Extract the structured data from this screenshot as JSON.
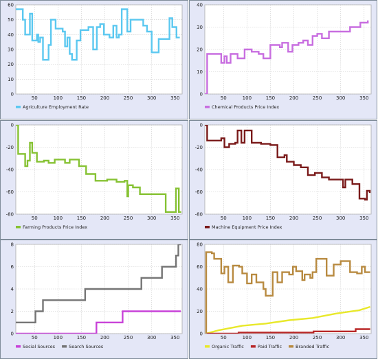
{
  "chart_data": [
    {
      "type": "line",
      "xlim": [
        10,
        365
      ],
      "ylim": [
        0,
        60
      ],
      "x_ticks": [
        50,
        100,
        150,
        200,
        250,
        300,
        350
      ],
      "y_ticks": [
        0,
        10,
        20,
        30,
        40,
        50,
        60
      ],
      "grid": true,
      "legend_position": "bottom-left",
      "series": [
        {
          "name": "Agriculture Employment Rate",
          "color": "#5bc8f0",
          "step": true,
          "points": [
            [
              10,
              57
            ],
            [
              25,
              50
            ],
            [
              30,
              40
            ],
            [
              38,
              40
            ],
            [
              40,
              54
            ],
            [
              45,
              36
            ],
            [
              55,
              40
            ],
            [
              58,
              35
            ],
            [
              62,
              38
            ],
            [
              68,
              23
            ],
            [
              80,
              33
            ],
            [
              85,
              50
            ],
            [
              95,
              44
            ],
            [
              110,
              42
            ],
            [
              115,
              32
            ],
            [
              120,
              38
            ],
            [
              125,
              27
            ],
            [
              130,
              23
            ],
            [
              140,
              36
            ],
            [
              148,
              43
            ],
            [
              165,
              45
            ],
            [
              175,
              30
            ],
            [
              183,
              45
            ],
            [
              190,
              47
            ],
            [
              198,
              40
            ],
            [
              210,
              38
            ],
            [
              218,
              46
            ],
            [
              225,
              38
            ],
            [
              230,
              40
            ],
            [
              236,
              57
            ],
            [
              248,
              42
            ],
            [
              255,
              50
            ],
            [
              275,
              50
            ],
            [
              282,
              46
            ],
            [
              290,
              42
            ],
            [
              300,
              28
            ],
            [
              315,
              37
            ],
            [
              328,
              37
            ],
            [
              338,
              51
            ],
            [
              344,
              45
            ],
            [
              353,
              38
            ],
            [
              360,
              38
            ]
          ]
        }
      ]
    },
    {
      "type": "line",
      "xlim": [
        10,
        365
      ],
      "ylim": [
        0,
        40
      ],
      "x_ticks": [
        50,
        100,
        150,
        200,
        250,
        300,
        350
      ],
      "y_ticks": [
        0,
        10,
        20,
        30,
        40
      ],
      "grid": true,
      "legend_position": "bottom-left",
      "series": [
        {
          "name": "Chemical Products Price Index",
          "color": "#c86ee0",
          "step": true,
          "points": [
            [
              10,
              0
            ],
            [
              15,
              18
            ],
            [
              45,
              14
            ],
            [
              52,
              17
            ],
            [
              57,
              14
            ],
            [
              65,
              18
            ],
            [
              80,
              16
            ],
            [
              95,
              20
            ],
            [
              110,
              19
            ],
            [
              125,
              18
            ],
            [
              135,
              16
            ],
            [
              150,
              22
            ],
            [
              170,
              21
            ],
            [
              175,
              23
            ],
            [
              188,
              19
            ],
            [
              197,
              22
            ],
            [
              210,
              23
            ],
            [
              220,
              24
            ],
            [
              230,
              22
            ],
            [
              240,
              26
            ],
            [
              250,
              27
            ],
            [
              260,
              25
            ],
            [
              275,
              28
            ],
            [
              300,
              28
            ],
            [
              320,
              30
            ],
            [
              342,
              32
            ],
            [
              358,
              33
            ]
          ]
        }
      ]
    },
    {
      "type": "line",
      "xlim": [
        10,
        365
      ],
      "ylim": [
        -80,
        0
      ],
      "x_ticks": [
        50,
        100,
        150,
        200,
        250,
        300,
        350
      ],
      "y_ticks": [
        -80,
        -60,
        -40,
        -20,
        0
      ],
      "grid": true,
      "legend_position": "bottom-left",
      "series": [
        {
          "name": "Farming Products Price Index",
          "color": "#86c233",
          "step": true,
          "points": [
            [
              10,
              0
            ],
            [
              15,
              -26
            ],
            [
              30,
              -37
            ],
            [
              35,
              -32
            ],
            [
              40,
              -16
            ],
            [
              45,
              -25
            ],
            [
              55,
              -33
            ],
            [
              70,
              -32
            ],
            [
              80,
              -34
            ],
            [
              93,
              -31
            ],
            [
              115,
              -34
            ],
            [
              125,
              -31
            ],
            [
              145,
              -37
            ],
            [
              160,
              -44
            ],
            [
              173,
              -44
            ],
            [
              180,
              -50
            ],
            [
              205,
              -49
            ],
            [
              225,
              -51
            ],
            [
              242,
              -50
            ],
            [
              248,
              -64
            ],
            [
              250,
              -54
            ],
            [
              260,
              -56
            ],
            [
              275,
              -62
            ],
            [
              320,
              -62
            ],
            [
              330,
              -78
            ],
            [
              345,
              -78
            ],
            [
              352,
              -57
            ],
            [
              358,
              -78
            ],
            [
              363,
              -78
            ]
          ]
        }
      ]
    },
    {
      "type": "line",
      "xlim": [
        10,
        365
      ],
      "ylim": [
        -80,
        0
      ],
      "x_ticks": [
        50,
        100,
        150,
        200,
        250,
        300,
        350
      ],
      "y_ticks": [
        -80,
        -60,
        -40,
        -20,
        0
      ],
      "grid": true,
      "legend_position": "bottom-left",
      "series": [
        {
          "name": "Machine Equipment Price Index",
          "color": "#7a1a1a",
          "step": true,
          "points": [
            [
              10,
              0
            ],
            [
              15,
              -14
            ],
            [
              45,
              -12
            ],
            [
              52,
              -20
            ],
            [
              62,
              -17
            ],
            [
              75,
              -16
            ],
            [
              80,
              -5
            ],
            [
              88,
              -16
            ],
            [
              95,
              -5
            ],
            [
              110,
              -16
            ],
            [
              130,
              -17
            ],
            [
              150,
              -18
            ],
            [
              165,
              -29
            ],
            [
              180,
              -27
            ],
            [
              185,
              -33
            ],
            [
              200,
              -36
            ],
            [
              215,
              -38
            ],
            [
              230,
              -45
            ],
            [
              245,
              -43
            ],
            [
              260,
              -47
            ],
            [
              275,
              -49
            ],
            [
              300,
              -49
            ],
            [
              305,
              -56
            ],
            [
              310,
              -49
            ],
            [
              325,
              -53
            ],
            [
              340,
              -66
            ],
            [
              352,
              -67
            ],
            [
              356,
              -59
            ],
            [
              362,
              -61
            ]
          ]
        }
      ]
    },
    {
      "type": "line",
      "xlim": [
        10,
        365
      ],
      "ylim": [
        0,
        8
      ],
      "x_ticks": [
        50,
        100,
        150,
        200,
        250,
        300,
        350
      ],
      "y_ticks": [
        0,
        2,
        4,
        6,
        8
      ],
      "grid": true,
      "legend_position": "bottom-left",
      "series": [
        {
          "name": "Social Sources",
          "color": "#c842d8",
          "step": true,
          "points": [
            [
              10,
              0
            ],
            [
              180,
              0
            ],
            [
              182,
              1
            ],
            [
              235,
              1
            ],
            [
              238,
              2
            ],
            [
              362,
              2
            ]
          ]
        },
        {
          "name": "Search Sources",
          "color": "#757575",
          "step": true,
          "points": [
            [
              10,
              1
            ],
            [
              50,
              1
            ],
            [
              52,
              2
            ],
            [
              65,
              2
            ],
            [
              68,
              3
            ],
            [
              155,
              3
            ],
            [
              158,
              4
            ],
            [
              275,
              4
            ],
            [
              278,
              5
            ],
            [
              320,
              5
            ],
            [
              322,
              6
            ],
            [
              350,
              6
            ],
            [
              352,
              7
            ],
            [
              355,
              7
            ],
            [
              357,
              8
            ],
            [
              362,
              8
            ]
          ]
        }
      ]
    },
    {
      "type": "line",
      "xlim": [
        10,
        365
      ],
      "ylim": [
        0,
        80
      ],
      "x_ticks": [
        50,
        100,
        150,
        200,
        250,
        300,
        350
      ],
      "y_ticks": [
        0,
        20,
        40,
        60,
        80
      ],
      "grid": true,
      "legend_position": "bottom-left",
      "series": [
        {
          "name": "Organic Traffic",
          "color": "#e8e82a",
          "step": false,
          "points": [
            [
              12,
              0
            ],
            [
              40,
              3
            ],
            [
              90,
              7
            ],
            [
              140,
              9
            ],
            [
              190,
              12
            ],
            [
              240,
              14
            ],
            [
              290,
              18
            ],
            [
              340,
              21
            ],
            [
              363,
              24
            ]
          ]
        },
        {
          "name": "Paid Traffic",
          "color": "#b82727",
          "step": true,
          "points": [
            [
              12,
              0
            ],
            [
              80,
              0
            ],
            [
              82,
              1
            ],
            [
              240,
              1
            ],
            [
              242,
              2
            ],
            [
              330,
              2
            ],
            [
              332,
              4
            ],
            [
              363,
              4
            ]
          ]
        },
        {
          "name": "Branded Traffic",
          "color": "#b88a40",
          "step": true,
          "points": [
            [
              12,
              0
            ],
            [
              13,
              73
            ],
            [
              25,
              72
            ],
            [
              30,
              67
            ],
            [
              45,
              54
            ],
            [
              52,
              60
            ],
            [
              60,
              46
            ],
            [
              70,
              61
            ],
            [
              83,
              60
            ],
            [
              90,
              54
            ],
            [
              100,
              45
            ],
            [
              110,
              53
            ],
            [
              120,
              46
            ],
            [
              135,
              40
            ],
            [
              140,
              34
            ],
            [
              155,
              55
            ],
            [
              165,
              46
            ],
            [
              175,
              55
            ],
            [
              190,
              53
            ],
            [
              198,
              60
            ],
            [
              205,
              56
            ],
            [
              218,
              48
            ],
            [
              223,
              53
            ],
            [
              235,
              50
            ],
            [
              240,
              55
            ],
            [
              248,
              67
            ],
            [
              262,
              67
            ],
            [
              270,
              52
            ],
            [
              285,
              62
            ],
            [
              300,
              65
            ],
            [
              320,
              55
            ],
            [
              335,
              54
            ],
            [
              345,
              60
            ],
            [
              352,
              55
            ],
            [
              363,
              55
            ]
          ]
        }
      ]
    }
  ]
}
